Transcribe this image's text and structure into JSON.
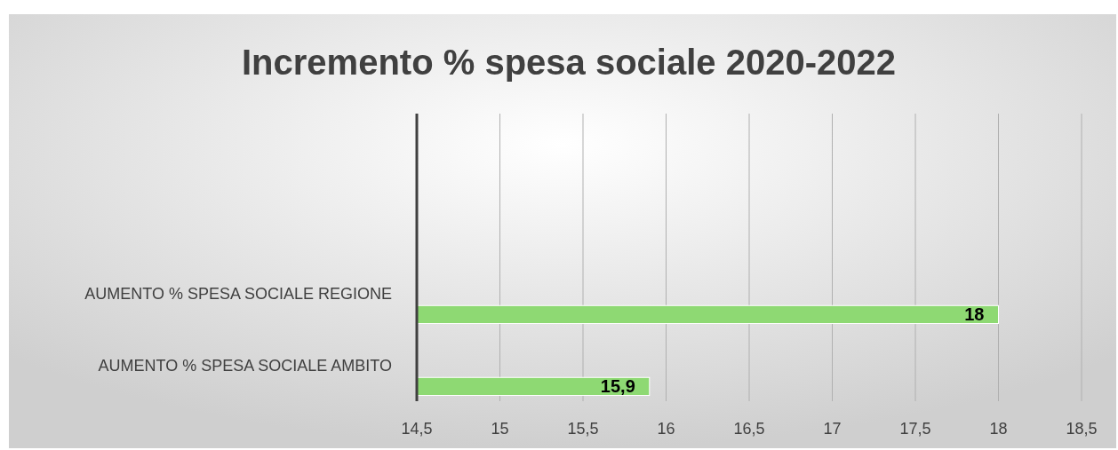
{
  "chart_data": {
    "type": "bar",
    "orientation": "horizontal",
    "title": "Incremento % spesa sociale 2020-2022",
    "categories": [
      "AUMENTO  % SPESA SOCIALE REGIONE",
      "AUMENTO  % SPESA SOCIALE AMBITO"
    ],
    "values": [
      18,
      15.9
    ],
    "value_labels": [
      "18",
      "15,9"
    ],
    "color": "#8ed973",
    "xlim": [
      14.5,
      18.5
    ],
    "xticks": [
      {
        "value": 14.5,
        "label": "14,5"
      },
      15,
      {
        "value": 15.5,
        "label": "15,5"
      },
      16,
      {
        "value": 16.5,
        "label": "16,5"
      },
      17,
      {
        "value": 17.5,
        "label": "17,5"
      },
      18,
      {
        "value": 18.5,
        "label": "18,5"
      }
    ],
    "grid": "x"
  }
}
